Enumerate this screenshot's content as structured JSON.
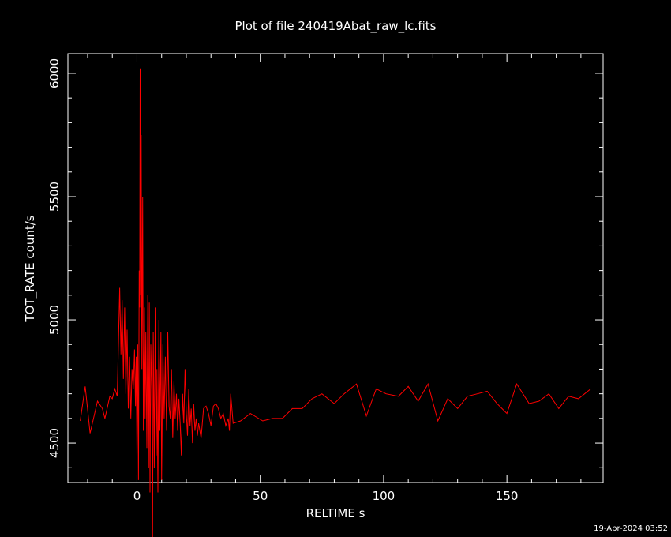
{
  "chart_data": {
    "type": "line",
    "title": "Plot of file 240419Abat_raw_lc.fits",
    "xlabel": "RELTIME  s",
    "ylabel": "TOT_RATE  count/s",
    "timestamp": "19-Apr-2024 03:52",
    "xlim": [
      -28,
      189
    ],
    "ylim": [
      4340,
      6080
    ],
    "xticks": [
      0,
      50,
      100,
      150
    ],
    "yticks": [
      4500,
      5000,
      5500,
      6000
    ],
    "grid": false,
    "colors": {
      "line": "#ff0000",
      "axes": "#ffffff",
      "background": "#000000"
    },
    "series": [
      {
        "values": [
          [
            -23,
            4590
          ],
          [
            -21,
            4730
          ],
          [
            -19,
            4540
          ],
          [
            -16,
            4670
          ],
          [
            -14,
            4640
          ],
          [
            -13,
            4600
          ],
          [
            -11,
            4690
          ],
          [
            -10,
            4680
          ],
          [
            -9,
            4720
          ],
          [
            -8,
            4690
          ],
          [
            -7,
            5130
          ],
          [
            -6.5,
            4860
          ],
          [
            -6,
            5080
          ],
          [
            -5.5,
            4760
          ],
          [
            -5,
            5050
          ],
          [
            -4.5,
            4700
          ],
          [
            -4,
            4960
          ],
          [
            -3.5,
            4640
          ],
          [
            -3,
            4850
          ],
          [
            -2.5,
            4600
          ],
          [
            -2,
            4800
          ],
          [
            -1.5,
            4720
          ],
          [
            -1,
            4880
          ],
          [
            -0.6,
            4650
          ],
          [
            -0.3,
            4850
          ],
          [
            0,
            4450
          ],
          [
            0.3,
            4900
          ],
          [
            0.6,
            4350
          ],
          [
            0.9,
            5200
          ],
          [
            1.1,
            5050
          ],
          [
            1.3,
            6020
          ],
          [
            1.5,
            5100
          ],
          [
            1.7,
            5750
          ],
          [
            2,
            4800
          ],
          [
            2.3,
            5500
          ],
          [
            2.6,
            4550
          ],
          [
            3,
            5050
          ],
          [
            3.3,
            4600
          ],
          [
            3.6,
            4950
          ],
          [
            4,
            4480
          ],
          [
            4.4,
            5100
          ],
          [
            4.7,
            4400
          ],
          [
            5,
            5070
          ],
          [
            5.3,
            4300
          ],
          [
            5.6,
            4900
          ],
          [
            6,
            4720
          ],
          [
            6.3,
            4060
          ],
          [
            6.6,
            4950
          ],
          [
            7,
            4400
          ],
          [
            7.4,
            5050
          ],
          [
            7.8,
            4450
          ],
          [
            8.1,
            4800
          ],
          [
            8.5,
            4300
          ],
          [
            8.9,
            5000
          ],
          [
            9.3,
            4550
          ],
          [
            9.7,
            4950
          ],
          [
            10,
            4350
          ],
          [
            10.5,
            4900
          ],
          [
            11,
            4600
          ],
          [
            11.5,
            4850
          ],
          [
            12,
            4550
          ],
          [
            12.5,
            4950
          ],
          [
            13,
            4650
          ],
          [
            13.5,
            4600
          ],
          [
            14,
            4800
          ],
          [
            14.5,
            4520
          ],
          [
            15,
            4750
          ],
          [
            15.5,
            4600
          ],
          [
            16,
            4700
          ],
          [
            16.5,
            4550
          ],
          [
            17,
            4680
          ],
          [
            17.5,
            4580
          ],
          [
            18,
            4450
          ],
          [
            18.5,
            4700
          ],
          [
            19,
            4580
          ],
          [
            19.5,
            4800
          ],
          [
            20,
            4620
          ],
          [
            20.5,
            4530
          ],
          [
            21,
            4720
          ],
          [
            21.5,
            4570
          ],
          [
            22,
            4640
          ],
          [
            22.5,
            4500
          ],
          [
            23,
            4660
          ],
          [
            23.5,
            4550
          ],
          [
            24,
            4600
          ],
          [
            24.5,
            4530
          ],
          [
            25,
            4580
          ],
          [
            26,
            4520
          ],
          [
            27,
            4640
          ],
          [
            28,
            4650
          ],
          [
            29,
            4620
          ],
          [
            30,
            4570
          ],
          [
            31,
            4650
          ],
          [
            32,
            4660
          ],
          [
            33,
            4640
          ],
          [
            34,
            4600
          ],
          [
            35,
            4620
          ],
          [
            36,
            4570
          ],
          [
            37,
            4600
          ],
          [
            37.5,
            4550
          ],
          [
            38,
            4700
          ],
          [
            39,
            4580
          ],
          [
            42,
            4590
          ],
          [
            46,
            4620
          ],
          [
            51,
            4590
          ],
          [
            55,
            4600
          ],
          [
            59,
            4600
          ],
          [
            63,
            4640
          ],
          [
            67,
            4640
          ],
          [
            71,
            4680
          ],
          [
            75,
            4700
          ],
          [
            80,
            4660
          ],
          [
            84,
            4700
          ],
          [
            89,
            4740
          ],
          [
            93,
            4610
          ],
          [
            97,
            4720
          ],
          [
            101,
            4700
          ],
          [
            106,
            4690
          ],
          [
            110,
            4730
          ],
          [
            114,
            4670
          ],
          [
            118,
            4740
          ],
          [
            122,
            4590
          ],
          [
            126,
            4680
          ],
          [
            130,
            4640
          ],
          [
            134,
            4690
          ],
          [
            138,
            4700
          ],
          [
            142,
            4710
          ],
          [
            146,
            4660
          ],
          [
            150,
            4620
          ],
          [
            154,
            4740
          ],
          [
            159,
            4660
          ],
          [
            163,
            4670
          ],
          [
            167,
            4700
          ],
          [
            171,
            4640
          ],
          [
            175,
            4690
          ],
          [
            179,
            4680
          ],
          [
            184,
            4720
          ]
        ]
      }
    ]
  }
}
